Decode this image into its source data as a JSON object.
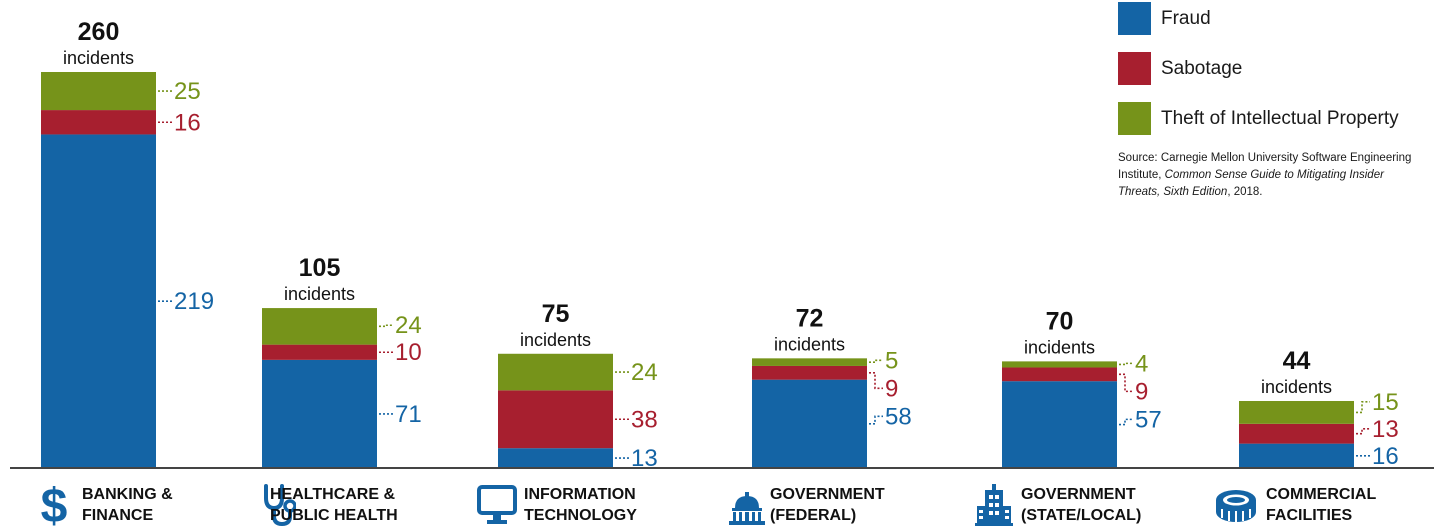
{
  "legend": [
    {
      "label": "Fraud",
      "color": "#1464a5"
    },
    {
      "label": "Sabotage",
      "color": "#a71f2f"
    },
    {
      "label": "Theft of Intellectual Property",
      "color": "#76931a"
    }
  ],
  "source": {
    "prefix": "Source: Carnegie Mellon University Software Engineering Institute, ",
    "italic": "Common Sense Guide to Mitigating Insider Threats, Sixth Edition",
    "suffix": ", 2018."
  },
  "categories": [
    {
      "line1": "BANKING &",
      "line2": "FINANCE",
      "icon": "dollar-icon"
    },
    {
      "line1": "HEALTHCARE &",
      "line2": "PUBLIC HEALTH",
      "icon": "stethoscope-icon"
    },
    {
      "line1": "INFORMATION",
      "line2": "TECHNOLOGY",
      "icon": "monitor-icon"
    },
    {
      "line1": "GOVERNMENT",
      "line2": "(FEDERAL)",
      "icon": "capitol-icon"
    },
    {
      "line1": "GOVERNMENT",
      "line2": "(STATE/LOCAL)",
      "icon": "building-icon"
    },
    {
      "line1": "COMMERCIAL",
      "line2": "FACILITIES",
      "icon": "stadium-icon"
    }
  ],
  "chart_data": {
    "type": "bar",
    "stacked": true,
    "categories": [
      "BANKING & FINANCE",
      "HEALTHCARE & PUBLIC HEALTH",
      "INFORMATION TECHNOLOGY",
      "GOVERNMENT (FEDERAL)",
      "GOVERNMENT (STATE/LOCAL)",
      "COMMERCIAL FACILITIES"
    ],
    "series": [
      {
        "name": "Fraud",
        "values": [
          219,
          71,
          13,
          58,
          57,
          16
        ],
        "color": "#1464a5"
      },
      {
        "name": "Sabotage",
        "values": [
          16,
          10,
          38,
          9,
          9,
          13
        ],
        "color": "#a71f2f"
      },
      {
        "name": "Theft of Intellectual Property",
        "values": [
          25,
          24,
          24,
          5,
          4,
          15
        ],
        "color": "#76931a"
      }
    ],
    "totals": [
      260,
      105,
      75,
      72,
      70,
      44
    ],
    "total_unit": "incidents",
    "legend_position": "top-right",
    "grid": false
  }
}
